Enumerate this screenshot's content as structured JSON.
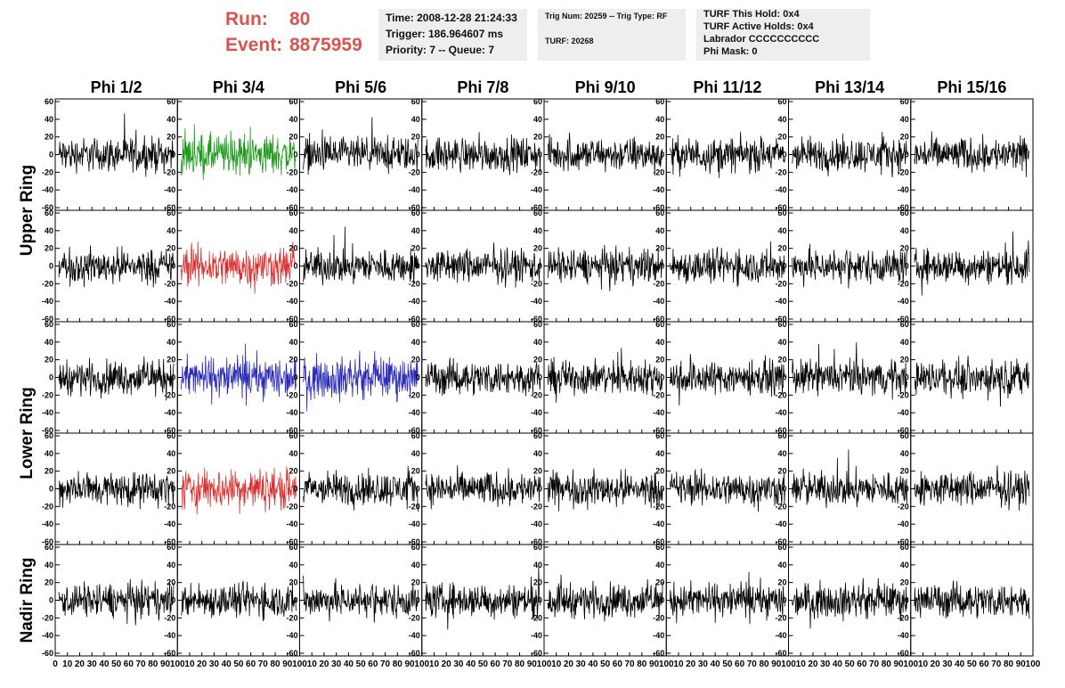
{
  "header": {
    "run_label": "Run:",
    "run_value": "80",
    "event_label": "Event:",
    "event_value": "8875959"
  },
  "info": {
    "time": "Time: 2008-12-28 21:24:33",
    "trigger": "Trigger: 186.964607 ms",
    "priority": "Priority: 7 -- Queue: 7",
    "trig_num": "Trig Num: 20259 -- Trig Type: RF",
    "turf": "TURF: 20268",
    "turf_hold": "TURF This Hold: 0x4",
    "turf_active": "TURF Active Holds: 0x4",
    "labrador": "Labrador CCCCCCCCCC",
    "phi_mask": "Phi Mask: 0"
  },
  "colors": {
    "header_text": "#d9534f",
    "green": "#1e9a1e",
    "red": "#d93030",
    "blue": "#2a2ab8",
    "trace": "#000000"
  },
  "chart_data": {
    "type": "line",
    "columns": [
      "Phi 1/2",
      "Phi 3/4",
      "Phi 5/6",
      "Phi 7/8",
      "Phi 9/10",
      "Phi 11/12",
      "Phi 13/14",
      "Phi 15/16"
    ],
    "row_labels": [
      {
        "label": "Upper Ring",
        "rows": [
          0,
          1
        ]
      },
      {
        "label": "Lower Ring",
        "rows": [
          2,
          3
        ]
      },
      {
        "label": "Nadir Ring",
        "rows": [
          4
        ]
      }
    ],
    "xlim": [
      0,
      100
    ],
    "ylim": [
      -60,
      60
    ],
    "xticks": [
      0,
      10,
      20,
      30,
      40,
      50,
      60,
      70,
      80,
      90,
      100
    ],
    "yticks": [
      -60,
      -40,
      -20,
      0,
      20,
      40,
      60
    ],
    "x_tick_label_runs": [
      "0 10 20 30 40 50 60 70 80 90 100",
      "10 20 30 40 50 60 70 80 90 100",
      "10 20 30 40 50 60 70 80 90 100",
      "10 20 30 40 50 60 70 80 90 100",
      "10 20 30 40 50 60 70 80 90 100",
      "10 20 30 40 50 60 70 80 90 100",
      "10 20 30 40 50 60 70 80 90 100",
      "10 20 30 40 50 60 70 80 90 100"
    ],
    "highlighted": [
      {
        "row": 0,
        "col": 1,
        "color": "green"
      },
      {
        "row": 1,
        "col": 1,
        "color": "red"
      },
      {
        "row": 2,
        "col": 1,
        "color": "blue"
      },
      {
        "row": 2,
        "col": 2,
        "color": "blue"
      },
      {
        "row": 3,
        "col": 1,
        "color": "red"
      }
    ],
    "trace_amplitude": 15,
    "trace_points": 260,
    "grid": false
  }
}
